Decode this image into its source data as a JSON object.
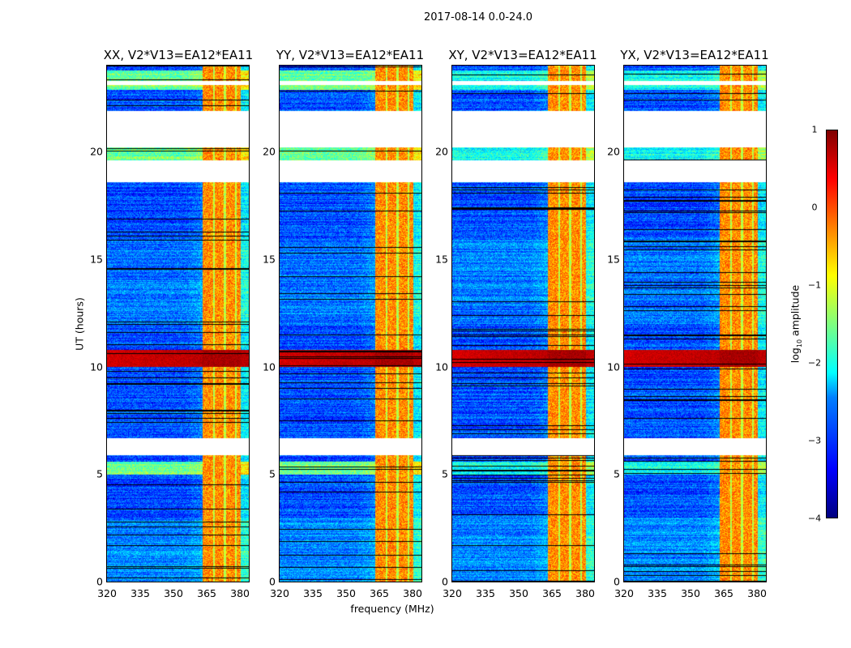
{
  "figure_title": "2017-08-14 0.0-24.0",
  "chart_data": {
    "type": "heatmap",
    "panels": [
      {
        "title": "XX, V2*V13=EA12*EA11"
      },
      {
        "title": "YY, V2*V13=EA12*EA11"
      },
      {
        "title": "XY, V2*V13=EA12*EA11"
      },
      {
        "title": "YX, V2*V13=EA12*EA11"
      }
    ],
    "xlabel": "frequency (MHz)",
    "ylabel": "UT (hours)",
    "xlim": [
      320,
      384
    ],
    "ylim": [
      0,
      24
    ],
    "xticks": [
      "320",
      "335",
      "350",
      "365",
      "380"
    ],
    "xtick_values": [
      320,
      335,
      350,
      365,
      380
    ],
    "yticks": [
      "0",
      "5",
      "10",
      "15",
      "20"
    ],
    "ytick_values": [
      0,
      5,
      10,
      15,
      20
    ],
    "colorbar": {
      "label_prefix": "log",
      "label_sub": "10",
      "label_suffix": " amplitude",
      "range": [
        -4,
        1
      ],
      "ticks": [
        "1",
        "0",
        "−1",
        "−2",
        "−3",
        "−4"
      ],
      "tick_values": [
        1,
        0,
        -1,
        -2,
        -3,
        -4
      ],
      "colormap": "jet"
    },
    "background_level_log10": -3,
    "rfi_band_mhz": [
      363,
      380
    ],
    "rfi_band_level_log10": -0.5,
    "strong_rfi_rows_hours": [
      [
        10.0,
        10.8
      ]
    ],
    "strong_rfi_level_log10": 0.7,
    "flagged_hours": [
      [
        5.9,
        6.7
      ],
      [
        18.6,
        19.6
      ],
      [
        20.2,
        21.9
      ],
      [
        23.1,
        23.3
      ]
    ],
    "elevated_rows_hours": [
      [
        19.6,
        20.2
      ],
      [
        22.9,
        23.8
      ],
      [
        5.0,
        5.6
      ]
    ]
  }
}
